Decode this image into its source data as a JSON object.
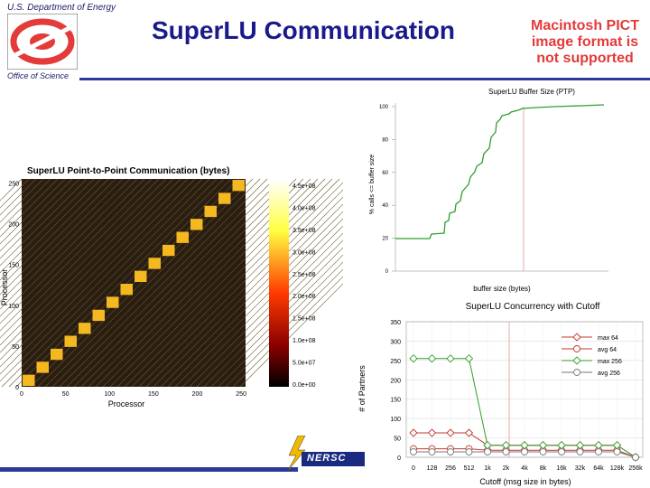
{
  "header": {
    "org": "U.S. Department of Energy",
    "office": "Office of Science",
    "title": "SuperLU Communication",
    "pict_notice": "Macintosh PICT image format is not supported",
    "footer_logo": "NERSC"
  },
  "colors": {
    "title": "#1a1a8c",
    "rule": "#2b3a99",
    "pict": "#e43a3a",
    "heat_bg": "#2a1d12",
    "series_green": "#2e9e2e",
    "series_red": "#c0392b"
  },
  "heatmap": {
    "title": "SuperLU Point-to-Point Communication (bytes)",
    "xlabel": "Processor",
    "ylabel": "Processor",
    "ticks": [
      "0",
      "50",
      "100",
      "150",
      "200",
      "250"
    ],
    "colorbar": [
      "4.5e+08",
      "4.0e+08",
      "3.5e+08",
      "3.0e+08",
      "2.5e+08",
      "2.0e+08",
      "1.5e+08",
      "1.0e+08",
      "5.0e+07",
      "0.0e+00"
    ]
  },
  "buffer_chart": {
    "title": "SuperLU Buffer Size (PTP)",
    "xlabel": "buffer size (bytes)",
    "ylabel": "% calls <= buffer size",
    "yticks": [
      "100",
      "80",
      "60",
      "40",
      "20",
      "0"
    ]
  },
  "chart_data": {
    "type": "line",
    "title": "SuperLU Concurrency with Cutoff",
    "xlabel": "Cutoff (msg size in bytes)",
    "ylabel": "# of Partners",
    "categories": [
      "0",
      "128",
      "256",
      "512",
      "1k",
      "2k",
      "4k",
      "8k",
      "16k",
      "32k",
      "64k",
      "128k",
      "256k"
    ],
    "yticks": [
      "350",
      "300",
      "250",
      "200",
      "150",
      "100",
      "50",
      "0"
    ],
    "ylim": [
      0,
      350
    ],
    "series": [
      {
        "name": "max 64",
        "values": [
          63,
          63,
          63,
          63,
          31,
          31,
          31,
          31,
          31,
          31,
          31,
          31,
          0
        ]
      },
      {
        "name": "avg 64",
        "values": [
          22,
          22,
          22,
          22,
          18,
          18,
          18,
          18,
          18,
          18,
          18,
          18,
          0
        ]
      },
      {
        "name": "max 256",
        "values": [
          255,
          255,
          255,
          255,
          31,
          31,
          31,
          31,
          31,
          31,
          31,
          31,
          0
        ]
      },
      {
        "name": "avg 256",
        "values": [
          14,
          14,
          14,
          14,
          14,
          14,
          14,
          14,
          14,
          14,
          14,
          14,
          0
        ]
      }
    ]
  }
}
